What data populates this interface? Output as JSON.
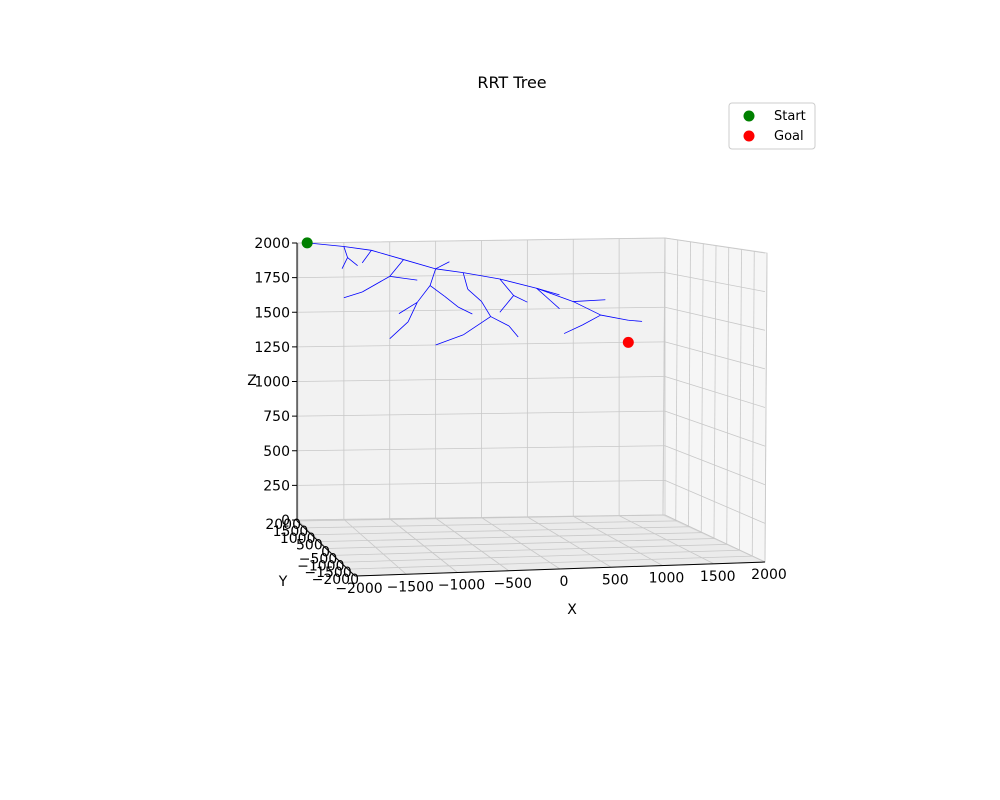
{
  "chart_data": {
    "type": "scatter",
    "projection": "3d",
    "title": "RRT Tree",
    "xlabel": "X",
    "ylabel": "Y",
    "zlabel": "Z",
    "xlim": [
      -2000,
      2000
    ],
    "ylim": [
      -2000,
      2000
    ],
    "zlim": [
      0,
      2000
    ],
    "x_ticks": [
      -2000,
      -1500,
      -1000,
      -500,
      0,
      500,
      1000,
      1500,
      2000
    ],
    "x_tick_labels": [
      "−2000",
      "−1500",
      "−1000",
      "−500",
      "0",
      "500",
      "1000",
      "1500",
      "2000"
    ],
    "y_tick_labels": [
      "−2000",
      "−1500",
      "−1000",
      "−500",
      "0",
      "500",
      "1000",
      "1500",
      "2000"
    ],
    "z_ticks": [
      0,
      250,
      500,
      750,
      1000,
      1250,
      1500,
      1750,
      2000
    ],
    "z_tick_labels": [
      "0",
      "250",
      "500",
      "750",
      "1000",
      "1250",
      "1500",
      "1750",
      "2000"
    ],
    "grid": true,
    "legend_position": "top-right",
    "series": [
      {
        "name": "Start",
        "color": "#008000",
        "points": [
          {
            "x": -1900,
            "y": 0,
            "z": 2000
          }
        ]
      },
      {
        "name": "Goal",
        "color": "#ff0000",
        "points": [
          {
            "x": 1600,
            "y": 0,
            "z": 1250
          }
        ]
      }
    ],
    "tree": {
      "color": "#0000ff",
      "edges": [
        [
          [
            -1900,
            2000
          ],
          [
            -1500,
            1970
          ]
        ],
        [
          [
            -1500,
            1970
          ],
          [
            -1200,
            1940
          ]
        ],
        [
          [
            -1500,
            1970
          ],
          [
            -1460,
            1890
          ]
        ],
        [
          [
            -1460,
            1890
          ],
          [
            -1520,
            1810
          ]
        ],
        [
          [
            -1460,
            1890
          ],
          [
            -1350,
            1830
          ]
        ],
        [
          [
            -1200,
            1940
          ],
          [
            -850,
            1870
          ]
        ],
        [
          [
            -850,
            1870
          ],
          [
            -500,
            1800
          ]
        ],
        [
          [
            -500,
            1800
          ],
          [
            -200,
            1770
          ]
        ],
        [
          [
            -200,
            1770
          ],
          [
            200,
            1720
          ]
        ],
        [
          [
            200,
            1720
          ],
          [
            600,
            1650
          ]
        ],
        [
          [
            600,
            1650
          ],
          [
            1000,
            1550
          ]
        ],
        [
          [
            1000,
            1550
          ],
          [
            1300,
            1450
          ]
        ],
        [
          [
            1300,
            1450
          ],
          [
            1600,
            1410
          ]
        ],
        [
          [
            1600,
            1410
          ],
          [
            1750,
            1400
          ]
        ],
        [
          [
            1000,
            1550
          ],
          [
            1350,
            1560
          ]
        ],
        [
          [
            600,
            1650
          ],
          [
            750,
            1560
          ]
        ],
        [
          [
            750,
            1560
          ],
          [
            850,
            1500
          ]
        ],
        [
          [
            -500,
            1800
          ],
          [
            -560,
            1680
          ]
        ],
        [
          [
            -560,
            1680
          ],
          [
            -700,
            1560
          ]
        ],
        [
          [
            -700,
            1560
          ],
          [
            -900,
            1480
          ]
        ],
        [
          [
            -560,
            1680
          ],
          [
            -400,
            1600
          ]
        ],
        [
          [
            -400,
            1600
          ],
          [
            -250,
            1520
          ]
        ],
        [
          [
            -250,
            1520
          ],
          [
            -100,
            1470
          ]
        ],
        [
          [
            -850,
            1870
          ],
          [
            -1000,
            1750
          ]
        ],
        [
          [
            -1000,
            1750
          ],
          [
            -1300,
            1640
          ]
        ],
        [
          [
            -1000,
            1750
          ],
          [
            -700,
            1720
          ]
        ],
        [
          [
            -1300,
            1640
          ],
          [
            -1500,
            1600
          ]
        ],
        [
          [
            -200,
            1770
          ],
          [
            -150,
            1650
          ]
        ],
        [
          [
            -150,
            1650
          ],
          [
            0,
            1560
          ]
        ],
        [
          [
            0,
            1560
          ],
          [
            100,
            1450
          ]
        ],
        [
          [
            200,
            1720
          ],
          [
            350,
            1600
          ]
        ],
        [
          [
            350,
            1600
          ],
          [
            500,
            1550
          ]
        ],
        [
          [
            350,
            1600
          ],
          [
            200,
            1480
          ]
        ],
        [
          [
            600,
            1650
          ],
          [
            850,
            1600
          ]
        ],
        [
          [
            -700,
            1560
          ],
          [
            -800,
            1420
          ]
        ],
        [
          [
            -800,
            1420
          ],
          [
            -1000,
            1300
          ]
        ],
        [
          [
            -1200,
            1940
          ],
          [
            -1300,
            1850
          ]
        ],
        [
          [
            -500,
            1800
          ],
          [
            -350,
            1850
          ]
        ],
        [
          [
            1300,
            1450
          ],
          [
            1100,
            1380
          ]
        ],
        [
          [
            1100,
            1380
          ],
          [
            900,
            1320
          ]
        ],
        [
          [
            100,
            1450
          ],
          [
            -200,
            1320
          ]
        ],
        [
          [
            -200,
            1320
          ],
          [
            -500,
            1250
          ]
        ],
        [
          [
            100,
            1450
          ],
          [
            300,
            1380
          ]
        ],
        [
          [
            300,
            1380
          ],
          [
            400,
            1300
          ]
        ]
      ]
    }
  }
}
